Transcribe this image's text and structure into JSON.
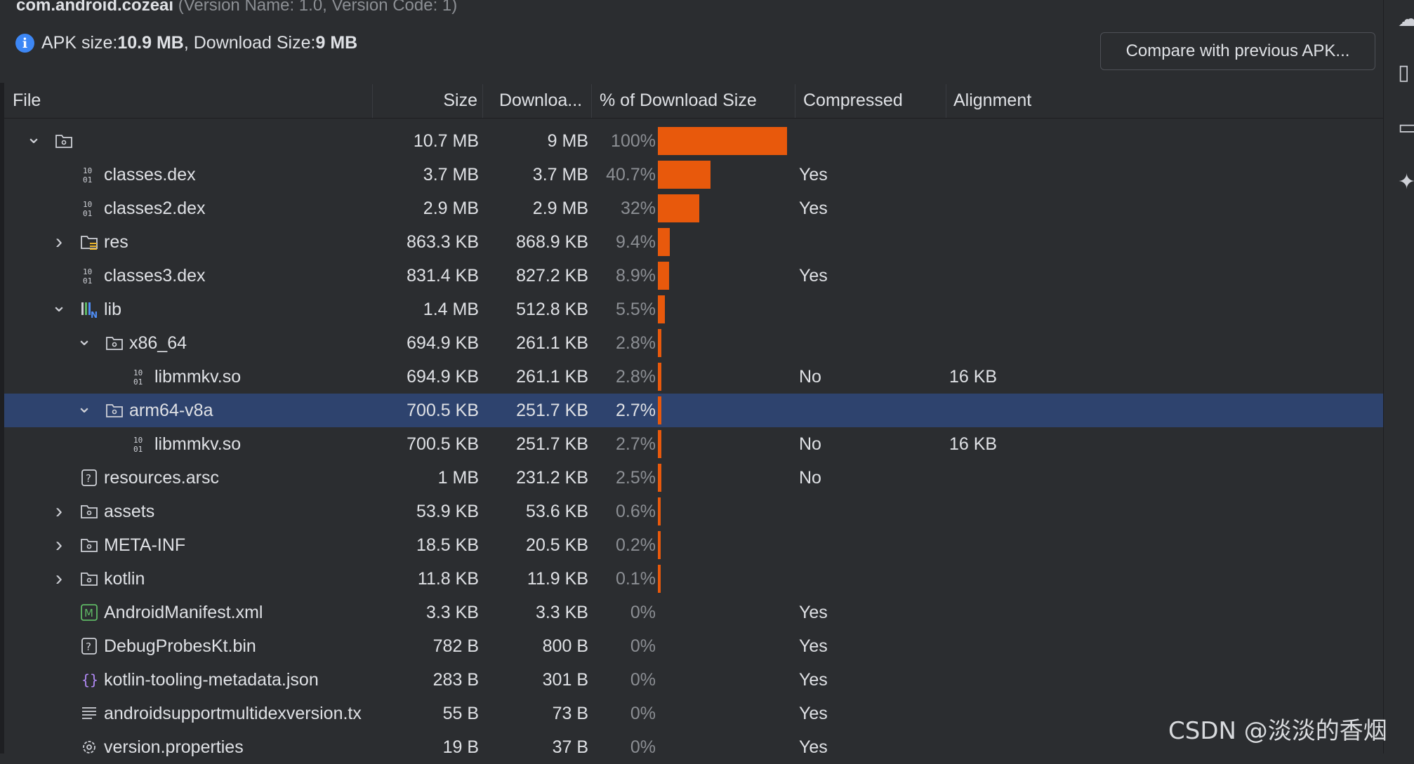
{
  "header": {
    "package_name": "com.android.cozeai",
    "version_info": " (Version Name: 1.0, Version Code: 1)",
    "apk_size_label": "APK size: ",
    "apk_size_value": "10.9 MB",
    "download_size_label": ", Download Size: ",
    "download_size_value": "9 MB",
    "compare_button": "Compare with previous APK..."
  },
  "columns": {
    "file": "File",
    "size": "Size",
    "download": "Downloa...",
    "percent": "% of Download Size",
    "compressed": "Compressed",
    "alignment": "Alignment"
  },
  "rows": [
    {
      "name": "",
      "size": "10.7 MB",
      "download": "9 MB",
      "percent": "100%",
      "percent_value": 100,
      "compressed": "",
      "alignment": "",
      "icon": "folder-icon",
      "chevron": "down",
      "indent": 0,
      "selected": false
    },
    {
      "name": "classes.dex",
      "size": "3.7 MB",
      "download": "3.7 MB",
      "percent": "40.7%",
      "percent_value": 40.7,
      "compressed": "Yes",
      "alignment": "",
      "icon": "binary-icon",
      "chevron": "",
      "indent": 1,
      "selected": false
    },
    {
      "name": "classes2.dex",
      "size": "2.9 MB",
      "download": "2.9 MB",
      "percent": "32%",
      "percent_value": 32,
      "compressed": "Yes",
      "alignment": "",
      "icon": "binary-icon",
      "chevron": "",
      "indent": 1,
      "selected": false
    },
    {
      "name": "res",
      "size": "863.3 KB",
      "download": "868.9 KB",
      "percent": "9.4%",
      "percent_value": 9.4,
      "compressed": "",
      "alignment": "",
      "icon": "resource-folder-icon",
      "chevron": "right",
      "indent": 1,
      "selected": false
    },
    {
      "name": "classes3.dex",
      "size": "831.4 KB",
      "download": "827.2 KB",
      "percent": "8.9%",
      "percent_value": 8.9,
      "compressed": "Yes",
      "alignment": "",
      "icon": "binary-icon",
      "chevron": "",
      "indent": 1,
      "selected": false
    },
    {
      "name": "lib",
      "size": "1.4 MB",
      "download": "512.8 KB",
      "percent": "5.5%",
      "percent_value": 5.5,
      "compressed": "",
      "alignment": "",
      "icon": "native-lib-icon",
      "chevron": "down",
      "indent": 1,
      "selected": false
    },
    {
      "name": "x86_64",
      "size": "694.9 KB",
      "download": "261.1 KB",
      "percent": "2.8%",
      "percent_value": 2.8,
      "compressed": "",
      "alignment": "",
      "icon": "folder-icon",
      "chevron": "down",
      "indent": 2,
      "selected": false
    },
    {
      "name": "libmmkv.so",
      "size": "694.9 KB",
      "download": "261.1 KB",
      "percent": "2.8%",
      "percent_value": 2.8,
      "compressed": "No",
      "alignment": "16 KB",
      "icon": "binary-icon",
      "chevron": "",
      "indent": 3,
      "selected": false
    },
    {
      "name": "arm64-v8a",
      "size": "700.5 KB",
      "download": "251.7 KB",
      "percent": "2.7%",
      "percent_value": 2.7,
      "compressed": "",
      "alignment": "",
      "icon": "folder-icon",
      "chevron": "down",
      "indent": 2,
      "selected": true
    },
    {
      "name": "libmmkv.so",
      "size": "700.5 KB",
      "download": "251.7 KB",
      "percent": "2.7%",
      "percent_value": 2.7,
      "compressed": "No",
      "alignment": "16 KB",
      "icon": "binary-icon",
      "chevron": "",
      "indent": 3,
      "selected": false
    },
    {
      "name": "resources.arsc",
      "size": "1 MB",
      "download": "231.2 KB",
      "percent": "2.5%",
      "percent_value": 2.5,
      "compressed": "No",
      "alignment": "",
      "icon": "unknown-file-icon",
      "chevron": "",
      "indent": 1,
      "selected": false
    },
    {
      "name": "assets",
      "size": "53.9 KB",
      "download": "53.6 KB",
      "percent": "0.6%",
      "percent_value": 0.6,
      "compressed": "",
      "alignment": "",
      "icon": "folder-icon",
      "chevron": "right",
      "indent": 1,
      "selected": false
    },
    {
      "name": "META-INF",
      "size": "18.5 KB",
      "download": "20.5 KB",
      "percent": "0.2%",
      "percent_value": 0.2,
      "compressed": "",
      "alignment": "",
      "icon": "folder-icon",
      "chevron": "right",
      "indent": 1,
      "selected": false
    },
    {
      "name": "kotlin",
      "size": "11.8 KB",
      "download": "11.9 KB",
      "percent": "0.1%",
      "percent_value": 0.1,
      "compressed": "",
      "alignment": "",
      "icon": "folder-icon",
      "chevron": "right",
      "indent": 1,
      "selected": false
    },
    {
      "name": "AndroidManifest.xml",
      "size": "3.3 KB",
      "download": "3.3 KB",
      "percent": "0%",
      "percent_value": 0,
      "compressed": "Yes",
      "alignment": "",
      "icon": "manifest-icon",
      "chevron": "",
      "indent": 1,
      "selected": false
    },
    {
      "name": "DebugProbesKt.bin",
      "size": "782 B",
      "download": "800 B",
      "percent": "0%",
      "percent_value": 0,
      "compressed": "Yes",
      "alignment": "",
      "icon": "unknown-file-icon",
      "chevron": "",
      "indent": 1,
      "selected": false
    },
    {
      "name": "kotlin-tooling-metadata.json",
      "size": "283 B",
      "download": "301 B",
      "percent": "0%",
      "percent_value": 0,
      "compressed": "Yes",
      "alignment": "",
      "icon": "json-icon",
      "chevron": "",
      "indent": 1,
      "selected": false
    },
    {
      "name": "androidsupportmultidexversion.tx",
      "size": "55 B",
      "download": "73 B",
      "percent": "0%",
      "percent_value": 0,
      "compressed": "Yes",
      "alignment": "",
      "icon": "text-file-icon",
      "chevron": "",
      "indent": 1,
      "selected": false
    },
    {
      "name": "version.properties",
      "size": "19 B",
      "download": "37 B",
      "percent": "0%",
      "percent_value": 0,
      "compressed": "Yes",
      "alignment": "",
      "icon": "properties-icon",
      "chevron": "",
      "indent": 1,
      "selected": false
    }
  ],
  "bar_color": "#e8590c",
  "selection_color": "#2e436e",
  "watermark": "CSDN @淡淡的香烟"
}
